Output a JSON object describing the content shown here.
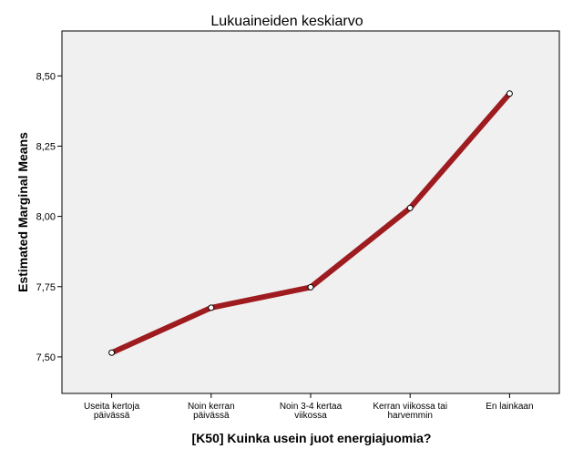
{
  "chart_data": {
    "type": "line",
    "title": "Lukuaineiden keskiarvo",
    "xlabel": "[K50] Kuinka usein juot energiajuomia?",
    "ylabel": "Estimated Marginal Means",
    "categories": [
      [
        "Useita kertoja",
        "päivässä"
      ],
      [
        "Noin kerran",
        "päivässä"
      ],
      [
        "Noin 3-4 kertaa",
        "viikossa"
      ],
      [
        "Kerran viikossa tai",
        "harvemmin"
      ],
      [
        "En lainkaan"
      ]
    ],
    "values": [
      7.515,
      7.675,
      7.748,
      8.03,
      8.437
    ],
    "ylim": [
      7.37,
      8.66
    ],
    "yticks": [
      7.5,
      7.75,
      8.0,
      8.25,
      8.5
    ],
    "ytick_labels": [
      "7,50",
      "7,75",
      "8,00",
      "8,25",
      "8,50"
    ],
    "grid": false,
    "colors": {
      "line": "#9e1b1f",
      "plot_bg": "#f0f0f0",
      "frame": "#000000"
    }
  }
}
